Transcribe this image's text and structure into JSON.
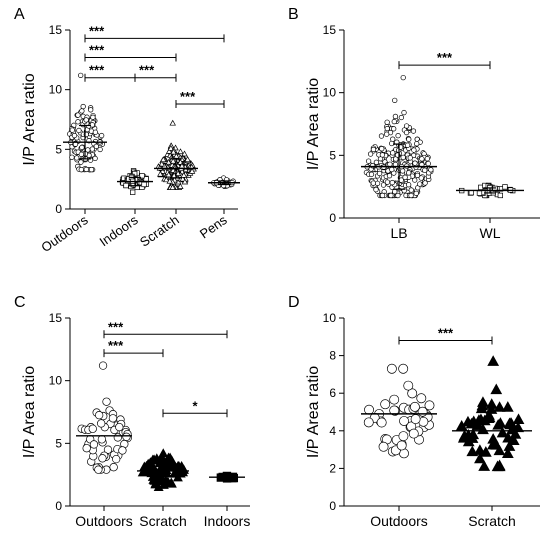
{
  "chart_data": [
    {
      "panel_label": "A",
      "type": "scatter",
      "ylabel": "I/P Area ratio",
      "xlabel": "",
      "ylim": [
        0,
        15
      ],
      "yticks": [
        0,
        5,
        10,
        15
      ],
      "categories": [
        "Outdoors",
        "Indoors",
        "Scratch",
        "Pens"
      ],
      "markers": [
        "circle",
        "square",
        "triangle",
        "circle"
      ],
      "filled": false,
      "series": [
        {
          "category": "Outdoors",
          "n": 120,
          "mean": 5.6,
          "sd": 1.4,
          "min": 3.3,
          "max": 11.2
        },
        {
          "category": "Indoors",
          "n": 45,
          "mean": 2.3,
          "sd": 0.35,
          "min": 1.4,
          "max": 3.2
        },
        {
          "category": "Scratch",
          "n": 170,
          "mean": 3.4,
          "sd": 0.8,
          "min": 1.8,
          "max": 7.2
        },
        {
          "category": "Pens",
          "n": 28,
          "mean": 2.2,
          "sd": 0.15,
          "min": 1.9,
          "max": 2.6
        }
      ],
      "comparisons": [
        {
          "from": "Outdoors",
          "to": "Pens",
          "label": "***",
          "y": 14.3
        },
        {
          "from": "Outdoors",
          "to": "Scratch",
          "label": "***",
          "y": 12.7
        },
        {
          "from": "Outdoors",
          "to": "Indoors",
          "label": "***",
          "y": 11.0
        },
        {
          "from": "Indoors",
          "to": "Scratch",
          "label": "***",
          "y": 11.0
        },
        {
          "from": "Scratch",
          "to": "Pens",
          "label": "***",
          "y": 8.8
        }
      ]
    },
    {
      "panel_label": "B",
      "type": "scatter",
      "ylabel": "I/P Area ratio",
      "xlabel": "",
      "ylim": [
        0,
        15
      ],
      "yticks": [
        0,
        5,
        10,
        15
      ],
      "categories": [
        "LB",
        "WL"
      ],
      "markers": [
        "circle",
        "square"
      ],
      "filled": false,
      "series": [
        {
          "category": "LB",
          "n": 280,
          "mean": 4.1,
          "sd": 1.8,
          "min": 1.8,
          "max": 11.2
        },
        {
          "category": "WL",
          "n": 40,
          "mean": 2.2,
          "sd": 0.2,
          "min": 1.8,
          "max": 2.6
        }
      ],
      "comparisons": [
        {
          "from": "LB",
          "to": "WL",
          "label": "***",
          "y": 12.2
        }
      ]
    },
    {
      "panel_label": "C",
      "type": "scatter",
      "ylabel": "I/P Area ratio",
      "xlabel": "",
      "ylim": [
        0,
        15
      ],
      "yticks": [
        0,
        5,
        10,
        15
      ],
      "categories": [
        "Outdoors",
        "Scratch",
        "Indoors"
      ],
      "markers": [
        "circle",
        "triangle",
        "square"
      ],
      "filled": [
        false,
        true,
        true
      ],
      "series": [
        {
          "category": "Outdoors",
          "n": 55,
          "mean": 5.6,
          "sd": 1.5,
          "min": 2.9,
          "max": 11.2
        },
        {
          "category": "Scratch",
          "n": 75,
          "mean": 2.8,
          "sd": 0.6,
          "min": 1.5,
          "max": 4.2
        },
        {
          "category": "Indoors",
          "n": 10,
          "mean": 2.3,
          "sd": 0.05,
          "min": 2.2,
          "max": 2.4
        }
      ],
      "comparisons": [
        {
          "from": "Outdoors",
          "to": "Indoors",
          "label": "***",
          "y": 13.7
        },
        {
          "from": "Outdoors",
          "to": "Scratch",
          "label": "***",
          "y": 12.2
        },
        {
          "from": "Scratch",
          "to": "Indoors",
          "label": "*",
          "y": 7.4
        }
      ]
    },
    {
      "panel_label": "D",
      "type": "scatter",
      "ylabel": "I/P Area ratio",
      "xlabel": "",
      "ylim": [
        0,
        10
      ],
      "yticks": [
        0,
        2,
        4,
        6,
        8,
        10
      ],
      "categories": [
        "Outdoors",
        "Scratch"
      ],
      "markers": [
        "circle",
        "triangle"
      ],
      "filled": [
        false,
        true
      ],
      "series": [
        {
          "category": "Outdoors",
          "n": 45,
          "mean": 4.9,
          "sd": 1.1,
          "min": 2.8,
          "max": 7.3
        },
        {
          "category": "Scratch",
          "n": 55,
          "mean": 4.0,
          "sd": 0.9,
          "min": 2.1,
          "max": 7.7
        }
      ],
      "comparisons": [
        {
          "from": "Outdoors",
          "to": "Scratch",
          "label": "***",
          "y": 8.8
        }
      ]
    }
  ]
}
